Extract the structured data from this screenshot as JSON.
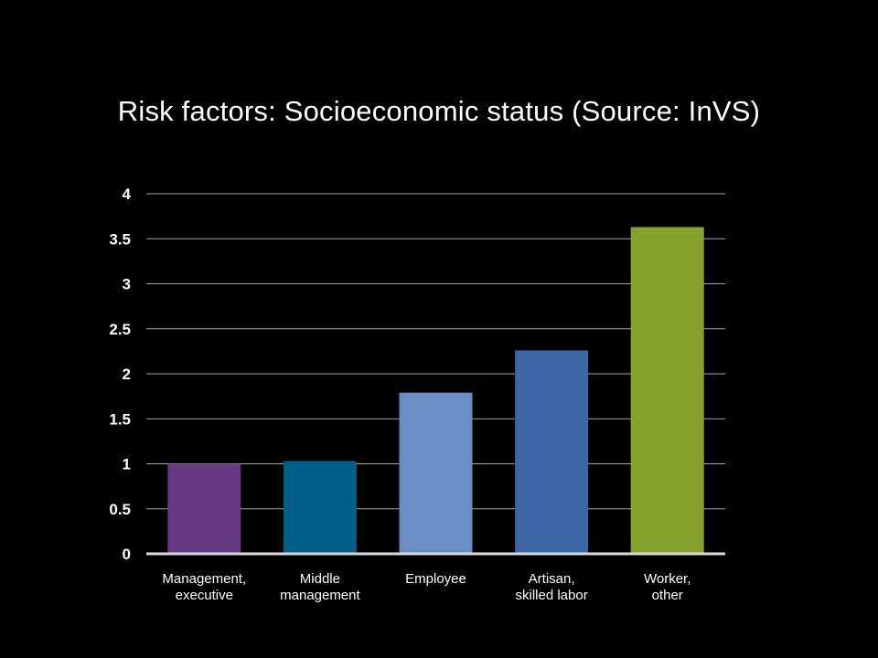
{
  "slide": {
    "title": "Risk factors: Socioeconomic status (Source: InVS)"
  },
  "chart_data": {
    "type": "bar",
    "title": "Risk factors: Socioeconomic status (Source: InVS)",
    "categories": [
      [
        "Management,",
        "executive"
      ],
      [
        "Middle",
        "management"
      ],
      [
        "Employee"
      ],
      [
        "Artisan,",
        "skilled labor"
      ],
      [
        "Worker,",
        "other"
      ]
    ],
    "values": [
      1.0,
      1.03,
      1.79,
      2.26,
      3.63
    ],
    "bar_colors": [
      "#663A82",
      "#005F87",
      "#6A8DC6",
      "#3D66A4",
      "#87A22C"
    ],
    "yticks": [
      "0",
      "0.5",
      "1",
      "1.5",
      "2",
      "2.5",
      "3",
      "3.5",
      "4"
    ],
    "ylim": [
      0,
      4
    ],
    "xlabel": "",
    "ylabel": "",
    "grid": true,
    "legend": "none",
    "gridline_color": "#A6A6A6",
    "axis_color": "#D9D9D9"
  }
}
